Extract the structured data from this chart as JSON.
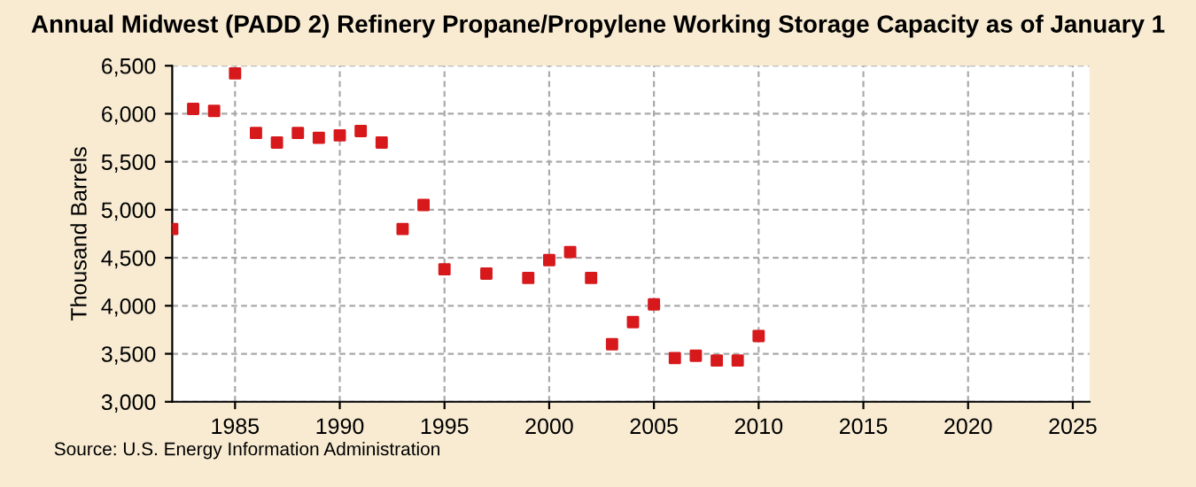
{
  "chart_data": {
    "type": "scatter",
    "title": "Annual Midwest (PADD 2) Refinery Propane/Propylene Working Storage Capacity as of January 1",
    "ylabel": "Thousand Barrels",
    "x": [
      1982,
      1983,
      1984,
      1985,
      1986,
      1987,
      1988,
      1989,
      1990,
      1991,
      1992,
      1993,
      1994,
      1995,
      1997,
      1999,
      2000,
      2001,
      2002,
      2003,
      2004,
      2005,
      2006,
      2007,
      2008,
      2009,
      2010
    ],
    "series": [
      {
        "color": "#d7191c",
        "values": [
          4800,
          6050,
          6030,
          6420,
          5800,
          5700,
          5800,
          5750,
          5775,
          5820,
          5700,
          4800,
          5050,
          4380,
          4335,
          4290,
          4475,
          4560,
          4290,
          3600,
          3830,
          4015,
          3455,
          3480,
          3430,
          3430,
          3685
        ]
      }
    ],
    "xlim": [
      1982,
      2025.8
    ],
    "xticks": [
      1985,
      1990,
      1995,
      2000,
      2005,
      2010,
      2015,
      2020,
      2025
    ],
    "ylim": [
      3000,
      6500
    ],
    "yticks": [
      {
        "value": 3000,
        "label": "3,000"
      },
      {
        "value": 3500,
        "label": "3,500"
      },
      {
        "value": 4000,
        "label": "4,000"
      },
      {
        "value": 4500,
        "label": "4,500"
      },
      {
        "value": 5000,
        "label": "5,000"
      },
      {
        "value": 5500,
        "label": "5,500"
      },
      {
        "value": 6000,
        "label": "6,000"
      },
      {
        "value": 6500,
        "label": "6,500"
      }
    ],
    "grid": true,
    "marker": "square",
    "annotations": [
      "Source: U.S. Energy Information Administration"
    ]
  }
}
